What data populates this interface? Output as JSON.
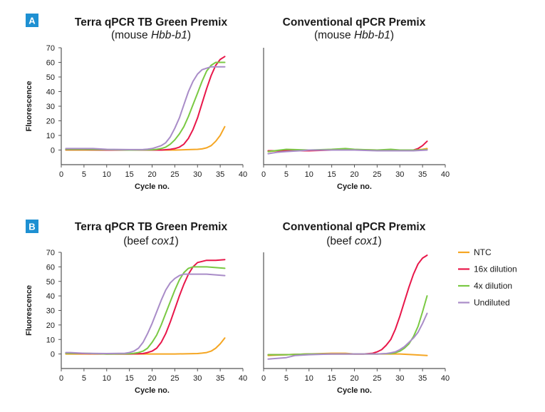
{
  "sections": [
    {
      "badge": "A",
      "badge_color": "#1e90d2"
    },
    {
      "badge": "B",
      "badge_color": "#1e90d2"
    }
  ],
  "legend": {
    "position": "right",
    "entries": [
      {
        "name": "NTC",
        "color": "#f5a623"
      },
      {
        "name": "16x dilution",
        "color": "#e8174a"
      },
      {
        "name": "4x dilution",
        "color": "#7ac943"
      },
      {
        "name": "Undiluted",
        "color": "#a98cc8"
      }
    ]
  },
  "chart_data": [
    {
      "type": "line",
      "section": "A",
      "title": "Terra qPCR TB Green Premix",
      "subtitle_prefix": "(mouse ",
      "subtitle_italic": "Hbb-b1",
      "subtitle_suffix": ")",
      "xlabel": "Cycle no.",
      "ylabel": "Fluorescence",
      "xlim": [
        0,
        40
      ],
      "ylim": [
        -10,
        70
      ],
      "xticks": [
        "0",
        "5",
        "10",
        "15",
        "20",
        "25",
        "30",
        "35",
        "40"
      ],
      "yticks": [
        "0",
        "10",
        "20",
        "30",
        "40",
        "50",
        "60",
        "70"
      ],
      "show_yticks": true,
      "series": [
        {
          "name": "NTC",
          "color": "#f5a623",
          "x": [
            1,
            5,
            10,
            15,
            20,
            25,
            28,
            30,
            31,
            32,
            33,
            34,
            35,
            36
          ],
          "y": [
            0,
            0,
            0,
            0,
            0,
            0,
            0.3,
            0.5,
            0.8,
            1.5,
            3,
            6,
            10,
            16
          ]
        },
        {
          "name": "16x dilution",
          "color": "#e8174a",
          "x": [
            1,
            5,
            10,
            15,
            20,
            22,
            24,
            25,
            26,
            27,
            28,
            29,
            30,
            31,
            32,
            33,
            34,
            35,
            36
          ],
          "y": [
            0.3,
            0.3,
            0,
            0,
            0,
            0,
            0.5,
            1,
            2,
            4,
            8,
            14,
            22,
            32,
            42,
            51,
            58,
            62,
            64
          ]
        },
        {
          "name": "4x dilution",
          "color": "#7ac943",
          "x": [
            1,
            5,
            10,
            15,
            20,
            21,
            22,
            23,
            24,
            25,
            26,
            27,
            28,
            29,
            30,
            31,
            32,
            33,
            34,
            35,
            36
          ],
          "y": [
            0.5,
            0.5,
            0.3,
            0,
            0.2,
            0.5,
            1,
            2,
            4,
            7,
            11,
            16,
            23,
            31,
            39,
            47,
            54,
            58,
            60,
            60,
            60
          ]
        },
        {
          "name": "Undiluted",
          "color": "#a98cc8",
          "x": [
            1,
            3,
            7,
            10,
            15,
            18,
            19,
            20,
            21,
            22,
            23,
            24,
            25,
            26,
            27,
            28,
            29,
            30,
            31,
            32,
            33,
            34,
            35,
            36
          ],
          "y": [
            1,
            1,
            1,
            0.5,
            0.3,
            0.4,
            0.6,
            1,
            2,
            3,
            5,
            9,
            15,
            22,
            31,
            40,
            47,
            52,
            55,
            56,
            57,
            57,
            57,
            57
          ]
        }
      ]
    },
    {
      "type": "line",
      "section": "A",
      "title": "Conventional qPCR Premix",
      "subtitle_prefix": "(mouse ",
      "subtitle_italic": "Hbb-b1",
      "subtitle_suffix": ")",
      "xlabel": "Cycle no.",
      "ylabel": "",
      "xlim": [
        0,
        40
      ],
      "ylim": [
        -10,
        70
      ],
      "xticks": [
        "0",
        "5",
        "10",
        "15",
        "20",
        "25",
        "30",
        "35",
        "40"
      ],
      "yticks": [],
      "show_yticks": false,
      "series": [
        {
          "name": "NTC",
          "color": "#f5a623",
          "x": [
            1,
            5,
            10,
            15,
            20,
            25,
            30,
            33,
            35,
            36
          ],
          "y": [
            -1,
            0,
            0,
            0,
            0.3,
            0,
            0,
            0,
            0.5,
            1
          ]
        },
        {
          "name": "16x dilution",
          "color": "#e8174a",
          "x": [
            1,
            5,
            10,
            15,
            20,
            25,
            30,
            33,
            34,
            35,
            36
          ],
          "y": [
            -0.5,
            -0.5,
            -0.5,
            0,
            0,
            0,
            0,
            0,
            1,
            3,
            6
          ]
        },
        {
          "name": "4x dilution",
          "color": "#7ac943",
          "x": [
            1,
            5,
            10,
            15,
            18,
            20,
            25,
            28,
            30,
            33,
            36
          ],
          "y": [
            -1,
            0.5,
            0,
            0.5,
            1,
            0.5,
            0,
            0.5,
            0,
            0,
            0.3
          ]
        },
        {
          "name": "Undiluted",
          "color": "#a98cc8",
          "x": [
            1,
            3,
            5,
            8,
            10,
            15,
            20,
            25,
            30,
            33,
            36
          ],
          "y": [
            -2.5,
            -1.5,
            -1,
            -0.5,
            0,
            0,
            0,
            -0.5,
            -0.5,
            -0.5,
            0
          ]
        }
      ]
    },
    {
      "type": "line",
      "section": "B",
      "title": "Terra qPCR TB Green Premix",
      "subtitle_prefix": "(beef ",
      "subtitle_italic": "cox1",
      "subtitle_suffix": ")",
      "xlabel": "Cycle no.",
      "ylabel": "Fluorescence",
      "xlim": [
        0,
        40
      ],
      "ylim": [
        -10,
        70
      ],
      "xticks": [
        "0",
        "5",
        "10",
        "15",
        "20",
        "25",
        "30",
        "35",
        "40"
      ],
      "yticks": [
        "0",
        "10",
        "20",
        "30",
        "40",
        "50",
        "60",
        "70"
      ],
      "show_yticks": true,
      "series": [
        {
          "name": "NTC",
          "color": "#f5a623",
          "x": [
            1,
            5,
            10,
            15,
            20,
            25,
            30,
            31,
            32,
            33,
            34,
            35,
            36
          ],
          "y": [
            0,
            0,
            0,
            0,
            0,
            0,
            0.3,
            0.6,
            1,
            2,
            4,
            7,
            11
          ]
        },
        {
          "name": "16x dilution",
          "color": "#e8174a",
          "x": [
            1,
            5,
            10,
            15,
            18,
            19,
            20,
            21,
            22,
            23,
            24,
            25,
            26,
            27,
            28,
            29,
            30,
            32,
            34,
            36
          ],
          "y": [
            0.5,
            0.3,
            0,
            0,
            0.3,
            1,
            2,
            4,
            8,
            14,
            22,
            31,
            40,
            48,
            55,
            60,
            63,
            64.5,
            64.5,
            65
          ]
        },
        {
          "name": "4x dilution",
          "color": "#7ac943",
          "x": [
            1,
            5,
            10,
            15,
            16,
            17,
            18,
            19,
            20,
            21,
            22,
            23,
            24,
            25,
            26,
            27,
            28,
            29,
            30,
            32,
            34,
            36
          ],
          "y": [
            0.5,
            0.5,
            0,
            0.2,
            0.5,
            1,
            2,
            4,
            8,
            13,
            20,
            28,
            36,
            44,
            51,
            56,
            59,
            60,
            60,
            60,
            59.5,
            59
          ]
        },
        {
          "name": "Undiluted",
          "color": "#a98cc8",
          "x": [
            1,
            2,
            5,
            10,
            14,
            15,
            16,
            17,
            18,
            19,
            20,
            21,
            22,
            23,
            24,
            25,
            26,
            27,
            28,
            30,
            32,
            34,
            36
          ],
          "y": [
            1,
            1,
            0.5,
            0.3,
            0.5,
            1,
            2,
            4,
            8,
            14,
            21,
            29,
            37,
            44,
            49,
            52,
            54,
            55,
            55,
            55,
            55,
            54.5,
            54
          ]
        }
      ]
    },
    {
      "type": "line",
      "section": "B",
      "title": "Conventional qPCR Premix",
      "subtitle_prefix": "(beef ",
      "subtitle_italic": "cox1",
      "subtitle_suffix": ")",
      "xlabel": "Cycle no.",
      "ylabel": "",
      "xlim": [
        0,
        40
      ],
      "ylim": [
        -10,
        70
      ],
      "xticks": [
        "0",
        "5",
        "10",
        "15",
        "20",
        "25",
        "30",
        "35",
        "40"
      ],
      "yticks": [],
      "show_yticks": false,
      "series": [
        {
          "name": "NTC",
          "color": "#f5a623",
          "x": [
            1,
            5,
            10,
            15,
            18,
            20,
            25,
            30,
            33,
            36
          ],
          "y": [
            -1,
            -0.5,
            0,
            0.5,
            0.5,
            0,
            0,
            0,
            -0.5,
            -1
          ]
        },
        {
          "name": "16x dilution",
          "color": "#e8174a",
          "x": [
            1,
            5,
            10,
            15,
            20,
            22,
            24,
            25,
            26,
            27,
            28,
            29,
            30,
            31,
            32,
            33,
            34,
            35,
            36
          ],
          "y": [
            -0.5,
            -0.5,
            0,
            0,
            0,
            0,
            0.5,
            1.5,
            3,
            6,
            10,
            17,
            26,
            36,
            46,
            55,
            62,
            66,
            68
          ]
        },
        {
          "name": "4x dilution",
          "color": "#7ac943",
          "x": [
            1,
            5,
            10,
            15,
            20,
            25,
            28,
            29,
            30,
            31,
            32,
            33,
            34,
            35,
            36
          ],
          "y": [
            -0.5,
            -0.5,
            0,
            0,
            0,
            0,
            0.3,
            0.8,
            2,
            4,
            7,
            12,
            19,
            29,
            40
          ]
        },
        {
          "name": "Undiluted",
          "color": "#a98cc8",
          "x": [
            1,
            3,
            5,
            7,
            10,
            15,
            20,
            25,
            27,
            28,
            29,
            30,
            31,
            32,
            33,
            34,
            35,
            36
          ],
          "y": [
            -3.5,
            -3,
            -2.5,
            -1,
            -0.5,
            0,
            0,
            0,
            0.3,
            0.8,
            1.5,
            3,
            5,
            8,
            11,
            15,
            21,
            28
          ]
        }
      ]
    }
  ]
}
